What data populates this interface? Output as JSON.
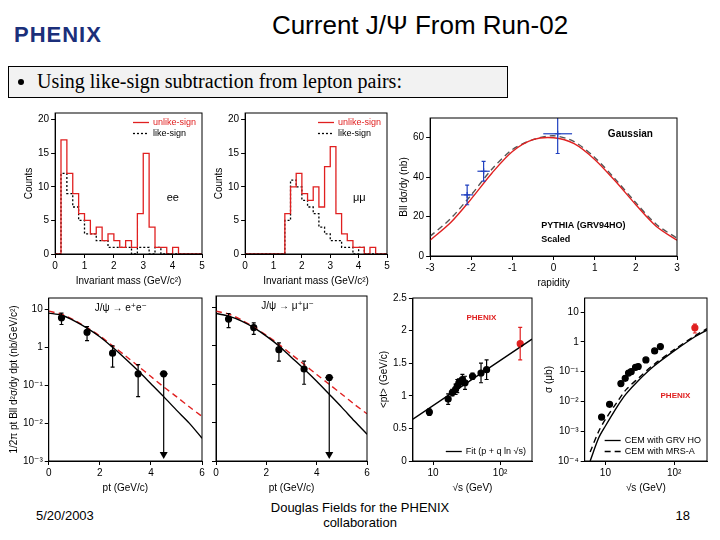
{
  "header": {
    "logo": "PHENIX",
    "title": "Current J/Ψ From Run-02",
    "bullet": "Using like-sign subtraction from lepton pairs:"
  },
  "footer": {
    "date": "5/20/2003",
    "author": "Douglas Fields for the PHENIX collaboration",
    "page": "18"
  },
  "chart_data": [
    {
      "type": "histogram",
      "annotations": [
        {
          "text": "ee"
        }
      ],
      "x_label": "Invariant mass (GeV/c²)",
      "y_label": "Counts",
      "bins": [
        0,
        0.2,
        0.4,
        0.6,
        0.8,
        1,
        1.2,
        1.4,
        1.6,
        1.8,
        2,
        2.2,
        2.4,
        2.6,
        2.8,
        3,
        3.2,
        3.4,
        3.6,
        3.8,
        4,
        4.2,
        4.4,
        4.6,
        4.8,
        5
      ],
      "xlim": [
        0,
        5
      ],
      "xticks": [
        0,
        1,
        2,
        3,
        4,
        5
      ],
      "ylim": [
        0,
        21
      ],
      "yticks": [
        0,
        5,
        10,
        15,
        20
      ],
      "grid": false,
      "legend": "upper right",
      "series": [
        {
          "name": "unlike-sign",
          "color": "#e02020",
          "line_style": "solid",
          "values": [
            0,
            17,
            12,
            9,
            6,
            5,
            3,
            4,
            2,
            3,
            2,
            1,
            2,
            1,
            6,
            15,
            4,
            1,
            1,
            0,
            1,
            0,
            0,
            0,
            0
          ]
        },
        {
          "name": "like-sign",
          "color": "#000000",
          "line_style": "dotted",
          "values": [
            0,
            12,
            9,
            7,
            5,
            3,
            3,
            2,
            2,
            1,
            1,
            1,
            1,
            0,
            1,
            1,
            0,
            1,
            0,
            0,
            0,
            0,
            0,
            0,
            0
          ]
        }
      ]
    },
    {
      "type": "histogram",
      "annotations": [
        {
          "text": "μμ"
        }
      ],
      "x_label": "Invariant mass (GeV/c²)",
      "y_label": "Counts",
      "bins": [
        0,
        0.2,
        0.4,
        0.6,
        0.8,
        1,
        1.2,
        1.4,
        1.6,
        1.8,
        2,
        2.2,
        2.4,
        2.6,
        2.8,
        3,
        3.2,
        3.4,
        3.6,
        3.8,
        4,
        4.2,
        4.4,
        4.6,
        4.8,
        5
      ],
      "xlim": [
        0,
        5
      ],
      "xticks": [
        0,
        1,
        2,
        3,
        4,
        5
      ],
      "ylim": [
        0,
        21
      ],
      "yticks": [
        0,
        5,
        10,
        15,
        20
      ],
      "grid": false,
      "legend": "upper right",
      "series": [
        {
          "name": "unlike-sign",
          "color": "#e02020",
          "line_style": "solid",
          "values": [
            0,
            0,
            0,
            0,
            0,
            0,
            0,
            6,
            10,
            12,
            9,
            8,
            10,
            7,
            13,
            16,
            6,
            3,
            2,
            1,
            1,
            0,
            1,
            0,
            0
          ]
        },
        {
          "name": "like-sign",
          "color": "#000000",
          "line_style": "dotted",
          "values": [
            0,
            0,
            0,
            0,
            0,
            0,
            0,
            5,
            11,
            10,
            8,
            7,
            6,
            4,
            3,
            2,
            2,
            1,
            1,
            0,
            1,
            0,
            0,
            0,
            0
          ]
        }
      ]
    },
    {
      "type": "scatter",
      "annotations": [
        {
          "text": "Gaussian"
        },
        {
          "text": "PYTHIA (GRV94HO)"
        },
        {
          "text": "Scaled"
        }
      ],
      "x_label": "rapidity",
      "y_label": "Bll dσ/dy (nb)",
      "xlim": [
        -3,
        3
      ],
      "xticks": [
        -3,
        -2,
        -1,
        0,
        1,
        2,
        3
      ],
      "ylim": [
        0,
        70
      ],
      "yticks": [
        0,
        20,
        40,
        60
      ],
      "grid": false,
      "series": [
        {
          "type": "line",
          "color": "#e02020",
          "line_style": "solid",
          "x": [
            -3,
            -2.5,
            -2,
            -1.5,
            -1,
            -0.5,
            0,
            0.5,
            1,
            1.5,
            2,
            2.5,
            3
          ],
          "values": [
            8,
            17,
            29,
            42,
            53,
            59,
            60,
            57,
            49,
            38,
            26,
            15,
            8
          ]
        },
        {
          "type": "line",
          "color": "#555555",
          "line_style": "dashed",
          "x": [
            -3,
            -2.5,
            -2,
            -1.5,
            -1,
            -0.5,
            0,
            0.5,
            1,
            1.5,
            2,
            2.5,
            3
          ],
          "values": [
            10,
            19,
            31,
            44,
            54,
            59,
            61,
            58,
            50,
            39,
            27,
            16,
            9
          ]
        },
        {
          "type": "scatter",
          "color": "#2040c0",
          "marker": "cross",
          "x": [
            -2.1,
            -1.7,
            0.1
          ],
          "values": [
            31,
            43,
            62
          ],
          "errors": [
            5,
            5,
            10
          ],
          "x_errors": [
            0.15,
            0.15,
            0.35
          ]
        }
      ]
    },
    {
      "type": "scatter",
      "log": "y",
      "annotations": [
        {
          "text": "J/ψ → e⁺e⁻"
        }
      ],
      "x_label": "pt (GeV/c)",
      "y_label": "1/2π pt Bll d²σ/dy dpt (nb/GeV/c²)",
      "xlim": [
        0,
        6
      ],
      "xticks": [
        0,
        2,
        4,
        6
      ],
      "ylim": [
        0.001,
        20
      ],
      "yticks": [
        {
          "value": 0.001,
          "label": "10⁻³"
        },
        {
          "value": 0.01,
          "label": "10⁻²"
        },
        {
          "value": 0.1,
          "label": "10⁻¹"
        },
        1,
        10
      ],
      "grid": false,
      "series": [
        {
          "type": "line",
          "color": "#000000",
          "line_style": "solid",
          "x": [
            0,
            0.5,
            1,
            1.5,
            2,
            2.5,
            3,
            3.5,
            4,
            4.5,
            5,
            5.5,
            6
          ],
          "values": [
            8,
            7,
            5,
            3.2,
            1.9,
            1.0,
            0.5,
            0.24,
            0.11,
            0.05,
            0.022,
            0.01,
            0.004
          ]
        },
        {
          "type": "line",
          "color": "#e02020",
          "line_style": "dashed",
          "x": [
            0,
            0.5,
            1,
            1.5,
            2,
            2.5,
            3,
            3.5,
            4,
            4.5,
            5,
            5.5,
            6
          ],
          "values": [
            9,
            7.5,
            5.2,
            3.3,
            2.0,
            1.1,
            0.6,
            0.32,
            0.17,
            0.09,
            0.05,
            0.027,
            0.015
          ]
        },
        {
          "type": "scatter",
          "color": "#000000",
          "marker": "circle",
          "x": [
            0.5,
            1.5,
            2.5,
            3.5,
            4.5
          ],
          "values": [
            6,
            2.5,
            0.7,
            0.2,
            0.2
          ],
          "errors": [
            2,
            1,
            0.4,
            0.15,
            0
          ],
          "upper_limit": [
            false,
            false,
            false,
            false,
            true
          ]
        }
      ]
    },
    {
      "type": "scatter",
      "log": "y",
      "tick_labels": "x",
      "annotations": [
        {
          "text": "J/ψ → μ⁺μ⁻"
        }
      ],
      "x_label": "pt (GeV/c)",
      "xlim": [
        0,
        6
      ],
      "xticks": [
        0,
        2,
        4,
        6
      ],
      "ylim": [
        0.001,
        20
      ],
      "yticks": [
        {
          "value": 0.001,
          "label": "10⁻³"
        },
        {
          "value": 0.01,
          "label": "10⁻²"
        },
        {
          "value": 0.1,
          "label": "10⁻¹"
        },
        1,
        10
      ],
      "grid": false,
      "series": [
        {
          "type": "line",
          "color": "#000000",
          "line_style": "solid",
          "x": [
            0,
            0.5,
            1,
            1.5,
            2,
            2.5,
            3,
            3.5,
            4,
            4.5,
            5,
            5.5,
            6
          ],
          "values": [
            7,
            6,
            4.5,
            3,
            1.8,
            1,
            0.5,
            0.25,
            0.12,
            0.055,
            0.025,
            0.011,
            0.005
          ]
        },
        {
          "type": "line",
          "color": "#e02020",
          "line_style": "dashed",
          "x": [
            0,
            0.5,
            1,
            1.5,
            2,
            2.5,
            3,
            3.5,
            4,
            4.5,
            5,
            5.5,
            6
          ],
          "values": [
            8,
            6.8,
            4.8,
            3.1,
            1.9,
            1.1,
            0.6,
            0.33,
            0.18,
            0.1,
            0.055,
            0.03,
            0.017
          ]
        },
        {
          "type": "scatter",
          "color": "#000000",
          "marker": "circle",
          "x": [
            0.5,
            1.5,
            2.5,
            3.5,
            4.5
          ],
          "values": [
            5,
            3,
            0.8,
            0.25,
            0.15
          ],
          "errors": [
            2,
            1,
            0.4,
            0.15,
            0
          ],
          "upper_limit": [
            false,
            false,
            false,
            false,
            true
          ]
        }
      ]
    },
    {
      "type": "scatter",
      "log": "x",
      "annotations": [
        {
          "text": "PHENIX",
          "color": "#e02020"
        }
      ],
      "x_label": "√s (GeV)",
      "y_label": "<pt> (GeV/c)",
      "xlim": [
        5,
        300
      ],
      "xticks": [
        10,
        {
          "value": 100,
          "label": "10²"
        }
      ],
      "ylim": [
        0,
        2.5
      ],
      "yticks": [
        0,
        0.5,
        1,
        1.5,
        2,
        2.5
      ],
      "grid": false,
      "legend": "lower right",
      "series": [
        {
          "name": "Fit (p + q ln √s)",
          "type": "line",
          "color": "#000000",
          "line_style": "solid",
          "x": [
            5,
            300
          ],
          "values": [
            0.64,
            1.87
          ]
        },
        {
          "type": "scatter",
          "color": "#000000",
          "marker": "circle",
          "x": [
            8.8,
            16.8,
            19.4,
            21.7,
            23,
            24.3,
            27.4,
            30,
            38.8,
            52,
            63
          ],
          "values": [
            0.75,
            0.95,
            1.05,
            1.1,
            1.15,
            1.2,
            1.25,
            1.2,
            1.3,
            1.35,
            1.4
          ],
          "errors": [
            0.05,
            0.08,
            0.05,
            0.08,
            0.1,
            0.06,
            0.08,
            0.1,
            0.05,
            0.15,
            0.15
          ]
        },
        {
          "type": "scatter",
          "color": "#e02020",
          "marker": "circle",
          "x": [
            200
          ],
          "values": [
            1.8
          ],
          "errors": [
            0.25
          ]
        }
      ]
    },
    {
      "type": "scatter",
      "log": true,
      "annotations": [
        {
          "text": "PHENIX",
          "color": "#e02020"
        }
      ],
      "x_label": "√s (GeV)",
      "y_label": "σ (μb)",
      "xlim": [
        5,
        300
      ],
      "xticks": [
        10,
        {
          "value": 100,
          "label": "10²"
        }
      ],
      "ylim": [
        0.0001,
        30
      ],
      "yticks": [
        {
          "value": 0.0001,
          "label": "10⁻⁴"
        },
        {
          "value": 0.001,
          "label": "10⁻³"
        },
        {
          "value": 0.01,
          "label": "10⁻²"
        },
        {
          "value": 0.1,
          "label": "10⁻¹"
        },
        1,
        10
      ],
      "grid": false,
      "legend": "lower right",
      "series": [
        {
          "name": "CEM with GRV HO",
          "type": "line",
          "color": "#000000",
          "line_style": "solid",
          "x": [
            6,
            8,
            10,
            15,
            20,
            30,
            50,
            100,
            200,
            300
          ],
          "values": [
            0.0001,
            0.0006,
            0.0015,
            0.007,
            0.018,
            0.05,
            0.15,
            0.5,
            1.5,
            2.5
          ]
        },
        {
          "name": "CEM with MRS-A",
          "type": "line",
          "color": "#000000",
          "line_style": "dashed",
          "x": [
            6,
            8,
            10,
            15,
            20,
            30,
            50,
            100,
            200,
            300
          ],
          "values": [
            0.0002,
            0.001,
            0.0025,
            0.01,
            0.025,
            0.06,
            0.17,
            0.55,
            1.6,
            2.8
          ]
        },
        {
          "type": "scatter",
          "color": "#000000",
          "marker": "circle",
          "x": [
            8.8,
            11.5,
            16.8,
            19.4,
            21.7,
            23.7,
            27.4,
            30,
            38.8,
            52,
            63
          ],
          "values": [
            0.003,
            0.008,
            0.04,
            0.06,
            0.09,
            0.1,
            0.14,
            0.15,
            0.25,
            0.5,
            0.7
          ]
        },
        {
          "type": "scatter",
          "color": "#e02020",
          "marker": "circle",
          "x": [
            200
          ],
          "values": [
            3
          ],
          "errors": [
            1
          ]
        }
      ]
    }
  ]
}
